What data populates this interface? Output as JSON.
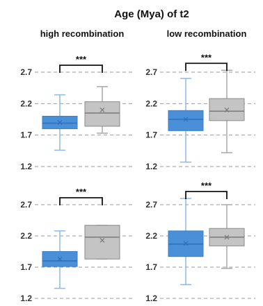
{
  "chart_data": {
    "type": "box",
    "title": "Age (Mya) of t2",
    "columns": [
      "high recombination",
      "low recombination"
    ],
    "yticks": [
      "1.2",
      "1.7",
      "2.2",
      "2.7"
    ],
    "ylim": [
      1.2,
      2.95
    ],
    "grid": "dashed horizontal",
    "colors": {
      "blue_fill": "#4a90d9",
      "blue_line": "#3b7dc4",
      "gray_fill": "#c4c4c4",
      "gray_line": "#8a8a8a"
    },
    "panels": [
      {
        "row": 1,
        "column": "high recombination",
        "significance": "***",
        "boxes": [
          {
            "color": "blue",
            "min": 1.46,
            "q1": 1.8,
            "median": 1.89,
            "q3": 2.0,
            "max": 2.34,
            "mean": 1.9
          },
          {
            "color": "gray",
            "min": 1.73,
            "q1": 1.84,
            "median": 2.05,
            "q3": 2.23,
            "max": 2.47,
            "mean": 2.1
          }
        ]
      },
      {
        "row": 1,
        "column": "low recombination",
        "significance": "***",
        "boxes": [
          {
            "color": "blue",
            "min": 1.27,
            "q1": 1.77,
            "median": 1.95,
            "q3": 2.09,
            "max": 2.6,
            "mean": 1.95
          },
          {
            "color": "gray",
            "min": 1.42,
            "q1": 1.93,
            "median": 2.08,
            "q3": 2.28,
            "max": 2.73,
            "mean": 2.1
          }
        ]
      },
      {
        "row": 2,
        "column": "high recombination",
        "significance": "***",
        "boxes": [
          {
            "color": "blue",
            "min": 1.36,
            "q1": 1.71,
            "median": 1.8,
            "q3": 1.95,
            "max": 2.28,
            "mean": 1.83
          },
          {
            "color": "gray",
            "min": 1.83,
            "q1": 1.83,
            "median": 2.18,
            "q3": 2.37,
            "max": 2.37,
            "mean": 2.13
          }
        ]
      },
      {
        "row": 2,
        "column": "low recombination",
        "significance": "***",
        "boxes": [
          {
            "color": "blue",
            "min": 1.42,
            "q1": 1.87,
            "median": 2.07,
            "q3": 2.28,
            "max": 2.8,
            "mean": 2.08
          },
          {
            "color": "gray",
            "min": 1.68,
            "q1": 2.04,
            "median": 2.18,
            "q3": 2.32,
            "max": 2.7,
            "mean": 2.18
          }
        ]
      }
    ]
  }
}
